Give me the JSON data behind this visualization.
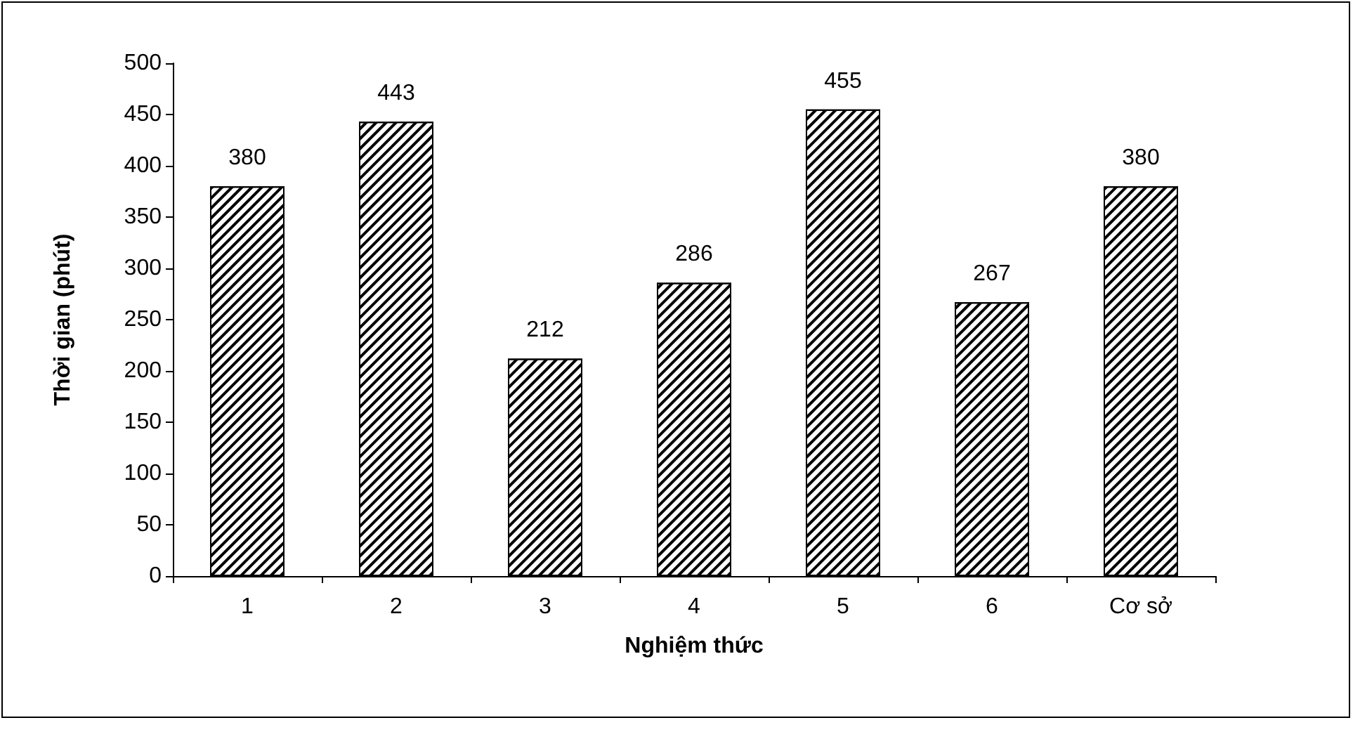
{
  "chart_data": {
    "type": "bar",
    "xlabel": "Nghiệm thức",
    "ylabel": "Thời gian (phút)",
    "categories": [
      "1",
      "2",
      "3",
      "4",
      "5",
      "6",
      "Cơ sở"
    ],
    "values": [
      380,
      443,
      212,
      286,
      455,
      267,
      380
    ],
    "color": "#ffffff",
    "ylim": [
      0,
      500
    ],
    "yticks": [
      0,
      50,
      100,
      150,
      200,
      250,
      300,
      350,
      400,
      450,
      500
    ],
    "data_labels": true,
    "grid": false
  }
}
